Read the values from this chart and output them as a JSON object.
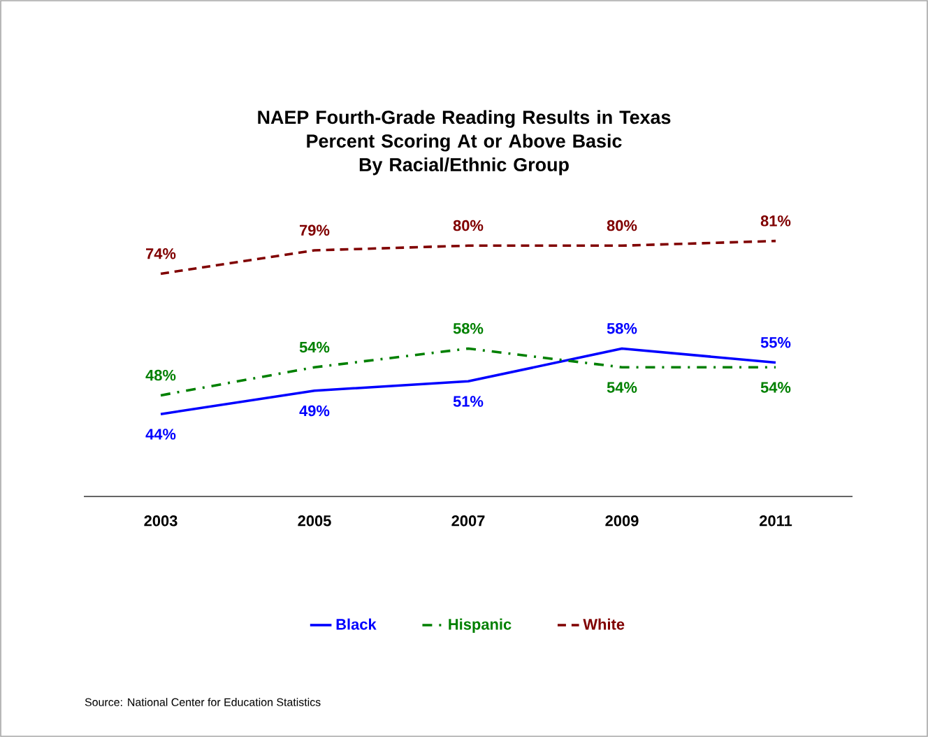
{
  "chart_data": {
    "type": "line",
    "title": "NAEP Fourth-Grade Reading Results in Texas\nPercent Scoring At or Above Basic\nBy Racial/Ethnic Group",
    "categories": [
      "2003",
      "2005",
      "2007",
      "2009",
      "2011"
    ],
    "series": [
      {
        "name": "Black",
        "color": "#0000ff",
        "line_style": "solid",
        "values": [
          44,
          49,
          51,
          58,
          55
        ],
        "value_labels": [
          "44%",
          "49%",
          "51%",
          "58%",
          "55%"
        ]
      },
      {
        "name": "Hispanic",
        "color": "#008000",
        "line_style": "dashdot",
        "values": [
          48,
          54,
          58,
          54,
          54
        ],
        "value_labels": [
          "48%",
          "54%",
          "58%",
          "54%",
          "54%"
        ]
      },
      {
        "name": "White",
        "color": "#800000",
        "line_style": "dashed",
        "values": [
          74,
          79,
          80,
          80,
          81
        ],
        "value_labels": [
          "74%",
          "79%",
          "80%",
          "80%",
          "81%"
        ]
      }
    ],
    "tick_labels": "x",
    "legend": "bottom",
    "annotations": [
      "Source: National Center for Education Statistics"
    ]
  }
}
